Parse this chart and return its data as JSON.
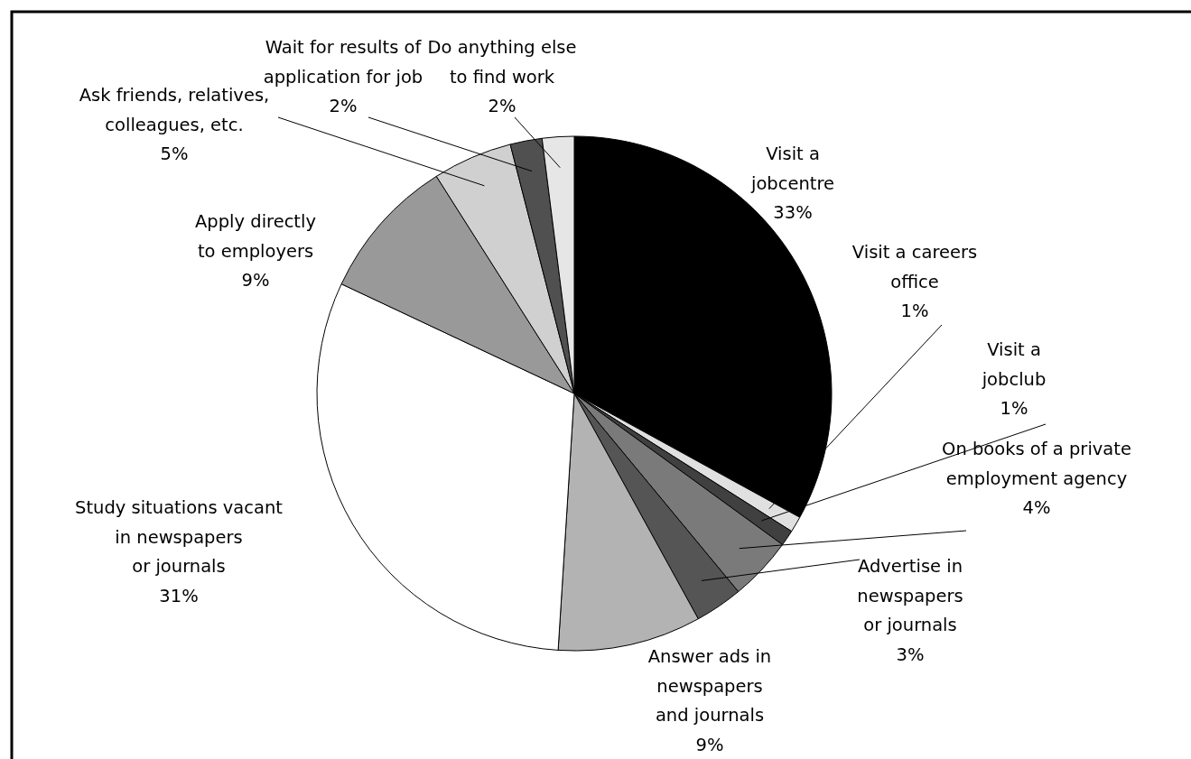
{
  "chart_data": {
    "type": "pie",
    "categories": [
      "Visit a jobcentre",
      "Visit a careers office",
      "Visit a jobclub",
      "On books of a private employment agency",
      "Advertise in newspapers or journals",
      "Answer ads in newspapers and journals",
      "Study situations vacant in newspapers or journals",
      "Apply directly to employers",
      "Ask friends, relatives, colleagues, etc.",
      "Wait for results of application for job",
      "Do anything else to find work"
    ],
    "values": [
      33,
      1,
      1,
      4,
      3,
      9,
      31,
      9,
      5,
      2,
      2
    ],
    "colors": [
      "#000000",
      "#e0e0e0",
      "#404040",
      "#7a7a7a",
      "#555555",
      "#b3b3b3",
      "#ffffff",
      "#999999",
      "#d0d0d0",
      "#505050",
      "#e6e6e6"
    ],
    "value_labels": [
      "33%",
      "1%",
      "1%",
      "4%",
      "3%",
      "9%",
      "31%",
      "9%",
      "5%",
      "2%",
      "2%"
    ]
  }
}
